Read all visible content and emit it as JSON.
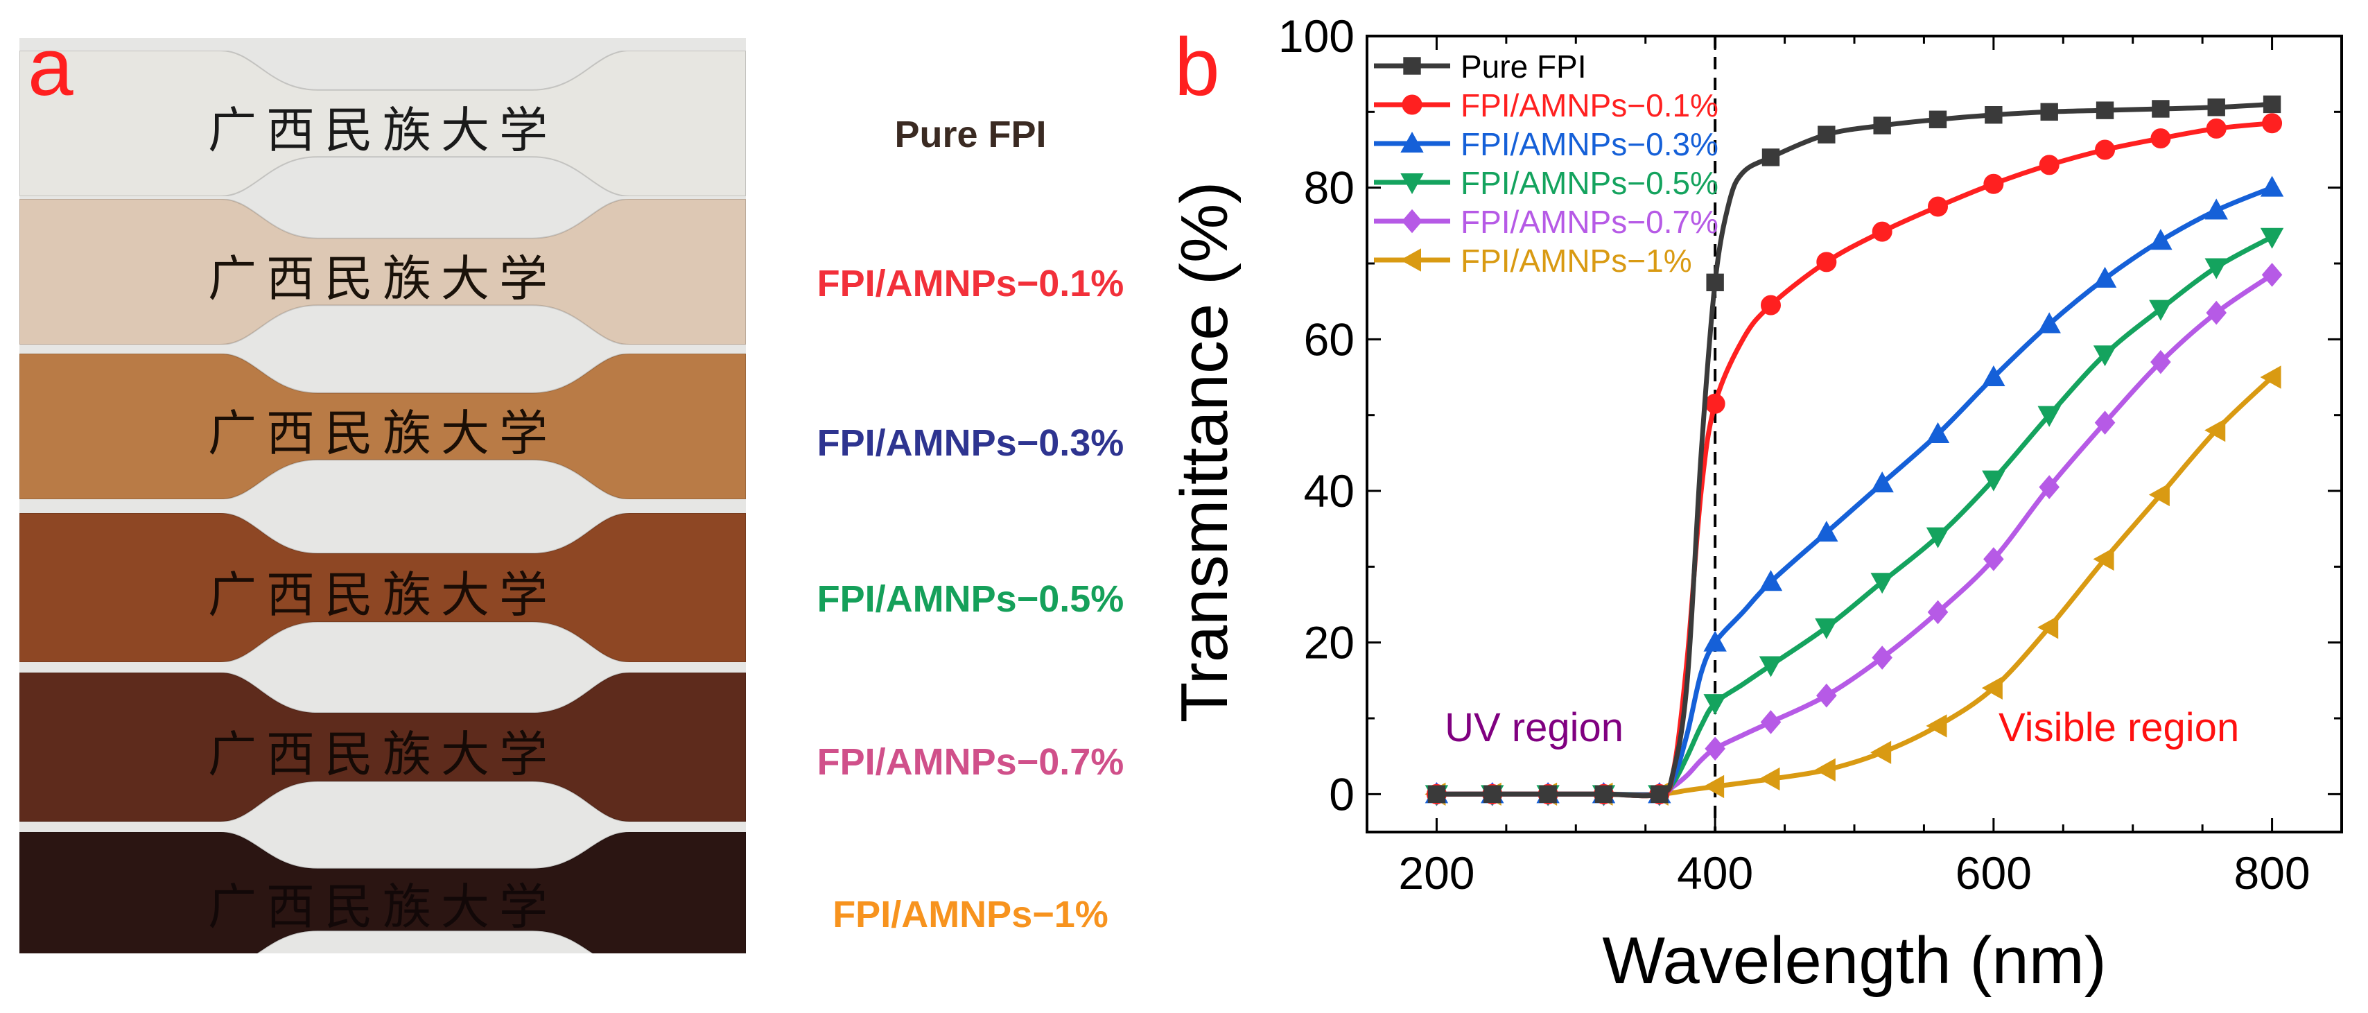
{
  "panel_a": {
    "letter": "a",
    "strip_text": "广西民族大学",
    "samples": [
      {
        "label": "Pure FPI",
        "label_color": "#3a2a22",
        "film_color": "#e7e6e1",
        "ink": "#1a1a1a"
      },
      {
        "label": "FPI/AMNPs−0.1%",
        "label_color": "#f2303a",
        "film_color": "#ddc8b4",
        "ink": "#1a120a"
      },
      {
        "label": "FPI/AMNPs−0.3%",
        "label_color": "#2e3490",
        "film_color": "#b97b46",
        "ink": "#1a0e05"
      },
      {
        "label": "FPI/AMNPs−0.5%",
        "label_color": "#15a05a",
        "film_color": "#8e4724",
        "ink": "#1a0c05"
      },
      {
        "label": "FPI/AMNPs−0.7%",
        "label_color": "#d0508a",
        "film_color": "#5e2b1c",
        "ink": "#150a06"
      },
      {
        "label": "FPI/AMNPs−1%",
        "label_color": "#f7931e",
        "film_color": "#2b1512",
        "ink": "#120808"
      }
    ]
  },
  "chart_data": {
    "type": "line",
    "panel_letter": "b",
    "xlabel": "Wavelength (nm)",
    "ylabel": "Transmittance (%)",
    "xlim": [
      150,
      850
    ],
    "ylim": [
      -5,
      100
    ],
    "xticks": [
      200,
      400,
      600,
      800
    ],
    "yticks": [
      0,
      20,
      40,
      60,
      80,
      100
    ],
    "reference_line_x": 400,
    "annotations": [
      {
        "text": "UV region",
        "x": 270,
        "y": 7,
        "color": "#800080"
      },
      {
        "text": "Visible region",
        "x": 690,
        "y": 7,
        "color": "#ff1010"
      }
    ],
    "legend_position": "top-left",
    "series": [
      {
        "name": "Pure FPI",
        "color": "#3a3a3a",
        "marker": "square",
        "x": [
          200,
          240,
          280,
          320,
          360,
          370,
          380,
          390,
          400,
          410,
          420,
          440,
          480,
          520,
          560,
          600,
          640,
          680,
          720,
          760,
          800
        ],
        "y": [
          0,
          0,
          0,
          0,
          0,
          3,
          15,
          45,
          67.5,
          78,
          82,
          84,
          87,
          88.2,
          89,
          89.6,
          90,
          90.2,
          90.4,
          90.6,
          91
        ],
        "mx": [
          200,
          240,
          280,
          320,
          360,
          400,
          440,
          480,
          520,
          560,
          600,
          640,
          680,
          720,
          760,
          800
        ]
      },
      {
        "name": "FPI/AMNPs−0.1%",
        "color": "#ff2020",
        "marker": "circle",
        "x": [
          200,
          240,
          280,
          320,
          360,
          370,
          380,
          390,
          400,
          420,
          440,
          480,
          520,
          560,
          600,
          640,
          680,
          720,
          760,
          800
        ],
        "y": [
          0,
          0,
          0,
          0,
          0,
          3,
          18,
          40,
          51.5,
          60,
          64.5,
          70.2,
          74.2,
          77.5,
          80.5,
          83,
          85,
          86.5,
          87.8,
          88.5
        ],
        "mx": [
          200,
          240,
          280,
          320,
          360,
          400,
          440,
          480,
          520,
          560,
          600,
          640,
          680,
          720,
          760,
          800
        ]
      },
      {
        "name": "FPI/AMNPs−0.3%",
        "color": "#1560d8",
        "marker": "triangle-up",
        "x": [
          200,
          240,
          280,
          320,
          360,
          370,
          380,
          390,
          400,
          420,
          440,
          480,
          520,
          560,
          600,
          640,
          680,
          720,
          760,
          800
        ],
        "y": [
          0,
          0,
          0,
          0,
          0,
          2,
          8,
          16,
          20,
          24,
          28,
          34.5,
          41,
          47.5,
          55,
          62,
          68,
          73,
          77,
          80
        ],
        "mx": [
          200,
          240,
          280,
          320,
          360,
          400,
          440,
          480,
          520,
          560,
          600,
          640,
          680,
          720,
          760,
          800
        ]
      },
      {
        "name": "FPI/AMNPs−0.5%",
        "color": "#14a35e",
        "marker": "triangle-down",
        "x": [
          200,
          240,
          280,
          320,
          360,
          370,
          380,
          390,
          400,
          420,
          440,
          480,
          520,
          560,
          600,
          640,
          680,
          720,
          760,
          800
        ],
        "y": [
          0,
          0,
          0,
          0,
          0,
          1.5,
          5,
          9,
          12,
          14.5,
          17,
          22,
          28,
          34,
          41.5,
          50,
          58,
          64,
          69.5,
          73.5
        ],
        "mx": [
          200,
          240,
          280,
          320,
          360,
          400,
          440,
          480,
          520,
          560,
          600,
          640,
          680,
          720,
          760,
          800
        ]
      },
      {
        "name": "FPI/AMNPs−0.7%",
        "color": "#b65ae6",
        "marker": "diamond",
        "x": [
          200,
          240,
          280,
          320,
          360,
          370,
          380,
          390,
          400,
          420,
          440,
          480,
          520,
          560,
          600,
          640,
          680,
          720,
          760,
          800
        ],
        "y": [
          0,
          0,
          0,
          0,
          0,
          1,
          2.5,
          4.5,
          6,
          7.8,
          9.5,
          13,
          18,
          24,
          31,
          40.5,
          49,
          57,
          63.5,
          68.5
        ],
        "mx": [
          200,
          240,
          280,
          320,
          360,
          400,
          440,
          480,
          520,
          560,
          600,
          640,
          680,
          720,
          760,
          800
        ]
      },
      {
        "name": "FPI/AMNPs−1%",
        "color": "#d99a12",
        "marker": "triangle-left",
        "x": [
          200,
          240,
          280,
          320,
          360,
          380,
          400,
          440,
          480,
          520,
          560,
          600,
          640,
          680,
          720,
          760,
          800
        ],
        "y": [
          0,
          0,
          0,
          0,
          0,
          0.5,
          1,
          2,
          3.2,
          5.5,
          9,
          14,
          22,
          31,
          39.5,
          48,
          55
        ],
        "mx": [
          200,
          240,
          280,
          320,
          360,
          400,
          440,
          480,
          520,
          560,
          600,
          640,
          680,
          720,
          760,
          800
        ]
      }
    ]
  }
}
